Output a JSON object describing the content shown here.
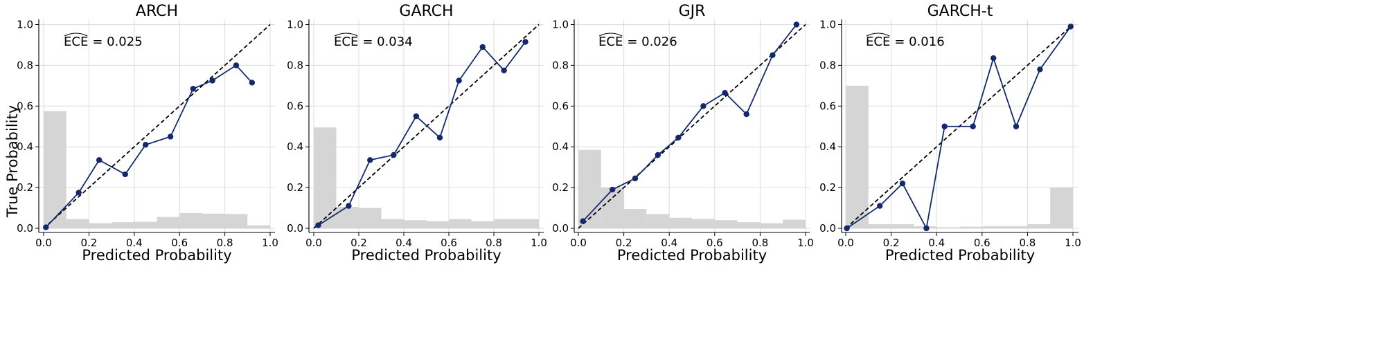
{
  "figure": {
    "ylabel": "True Probability",
    "xlabel": "Predicted Probability"
  },
  "colors": {
    "calibration_line": "#13296b",
    "histogram": "#d5d5d5",
    "diagonal": "#000000",
    "grid": "#dcdcdc"
  },
  "chart_data": [
    {
      "type": "line",
      "title": "ARCH",
      "ece_label": "ECE",
      "ece_value": "= 0.025",
      "xlabel": "Predicted Probability",
      "ylabel": "True Probability",
      "xlim": [
        -0.02,
        1.02
      ],
      "ylim": [
        -0.02,
        1.02
      ],
      "xticks": [
        "0.0",
        "0.2",
        "0.4",
        "0.6",
        "0.8",
        "1.0"
      ],
      "yticks": [
        "0.0",
        "0.2",
        "0.4",
        "0.6",
        "0.8",
        "1.0"
      ],
      "grid": true,
      "reference_line": "y = x (dashed)",
      "calibration": {
        "x": [
          0.01,
          0.155,
          0.245,
          0.36,
          0.45,
          0.56,
          0.66,
          0.745,
          0.85,
          0.92
        ],
        "y": [
          0.005,
          0.175,
          0.335,
          0.265,
          0.41,
          0.45,
          0.685,
          0.725,
          0.8,
          0.715
        ]
      },
      "histogram": {
        "bin_edges": [
          0.0,
          0.1,
          0.2,
          0.3,
          0.4,
          0.5,
          0.6,
          0.7,
          0.8,
          0.9,
          1.0
        ],
        "heights": [
          0.575,
          0.045,
          0.025,
          0.03,
          0.032,
          0.056,
          0.075,
          0.072,
          0.07,
          0.015
        ]
      }
    },
    {
      "type": "line",
      "title": "GARCH",
      "ece_label": "ECE",
      "ece_value": "= 0.034",
      "xlabel": "Predicted Probability",
      "ylabel": "",
      "xlim": [
        -0.02,
        1.02
      ],
      "ylim": [
        -0.02,
        1.02
      ],
      "xticks": [
        "0.0",
        "0.2",
        "0.4",
        "0.6",
        "0.8",
        "1.0"
      ],
      "yticks": [
        "0.0",
        "0.2",
        "0.4",
        "0.6",
        "0.8",
        "1.0"
      ],
      "grid": true,
      "reference_line": "y = x (dashed)",
      "calibration": {
        "x": [
          0.02,
          0.155,
          0.25,
          0.355,
          0.455,
          0.56,
          0.645,
          0.75,
          0.845,
          0.94
        ],
        "y": [
          0.015,
          0.11,
          0.335,
          0.36,
          0.55,
          0.445,
          0.725,
          0.89,
          0.775,
          0.915
        ]
      },
      "histogram": {
        "bin_edges": [
          0.0,
          0.1,
          0.2,
          0.3,
          0.4,
          0.5,
          0.6,
          0.7,
          0.8,
          0.9,
          1.0
        ],
        "heights": [
          0.495,
          0.105,
          0.1,
          0.045,
          0.04,
          0.035,
          0.045,
          0.035,
          0.045,
          0.045
        ]
      }
    },
    {
      "type": "line",
      "title": "GJR",
      "ece_label": "ECE",
      "ece_value": "= 0.026",
      "xlabel": "Predicted Probability",
      "ylabel": "",
      "xlim": [
        -0.02,
        1.02
      ],
      "ylim": [
        -0.02,
        1.02
      ],
      "xticks": [
        "0.0",
        "0.2",
        "0.4",
        "0.6",
        "0.8",
        "1.0"
      ],
      "yticks": [
        "0.0",
        "0.2",
        "0.4",
        "0.6",
        "0.8",
        "1.0"
      ],
      "grid": true,
      "reference_line": "y = x (dashed)",
      "calibration": {
        "x": [
          0.02,
          0.15,
          0.25,
          0.35,
          0.44,
          0.55,
          0.645,
          0.74,
          0.855,
          0.96
        ],
        "y": [
          0.035,
          0.19,
          0.245,
          0.36,
          0.445,
          0.6,
          0.665,
          0.56,
          0.85,
          1.0
        ]
      },
      "histogram": {
        "bin_edges": [
          0.0,
          0.1,
          0.2,
          0.3,
          0.4,
          0.5,
          0.6,
          0.7,
          0.8,
          0.9,
          1.0
        ],
        "heights": [
          0.385,
          0.2,
          0.095,
          0.07,
          0.052,
          0.046,
          0.04,
          0.03,
          0.025,
          0.042
        ]
      }
    },
    {
      "type": "line",
      "title": "GARCH-t",
      "ece_label": "ECE",
      "ece_value": "= 0.016",
      "xlabel": "Predicted Probability",
      "ylabel": "",
      "xlim": [
        -0.02,
        1.02
      ],
      "ylim": [
        -0.02,
        1.02
      ],
      "xticks": [
        "0.0",
        "0.2",
        "0.4",
        "0.6",
        "0.8",
        "1.0"
      ],
      "yticks": [
        "0.0",
        "0.2",
        "0.4",
        "0.6",
        "0.8",
        "1.0"
      ],
      "grid": true,
      "reference_line": "y = x (dashed)",
      "calibration": {
        "x": [
          0.005,
          0.15,
          0.25,
          0.355,
          0.435,
          0.56,
          0.65,
          0.75,
          0.855,
          0.99
        ],
        "y": [
          0.0,
          0.11,
          0.22,
          0.0,
          0.5,
          0.5,
          0.835,
          0.5,
          0.78,
          0.99
        ]
      },
      "histogram": {
        "bin_edges": [
          0.0,
          0.1,
          0.2,
          0.3,
          0.4,
          0.5,
          0.6,
          0.7,
          0.8,
          0.9,
          1.0
        ],
        "heights": [
          0.7,
          0.02,
          0.02,
          0.01,
          0.005,
          0.008,
          0.01,
          0.01,
          0.02,
          0.2
        ]
      }
    }
  ]
}
